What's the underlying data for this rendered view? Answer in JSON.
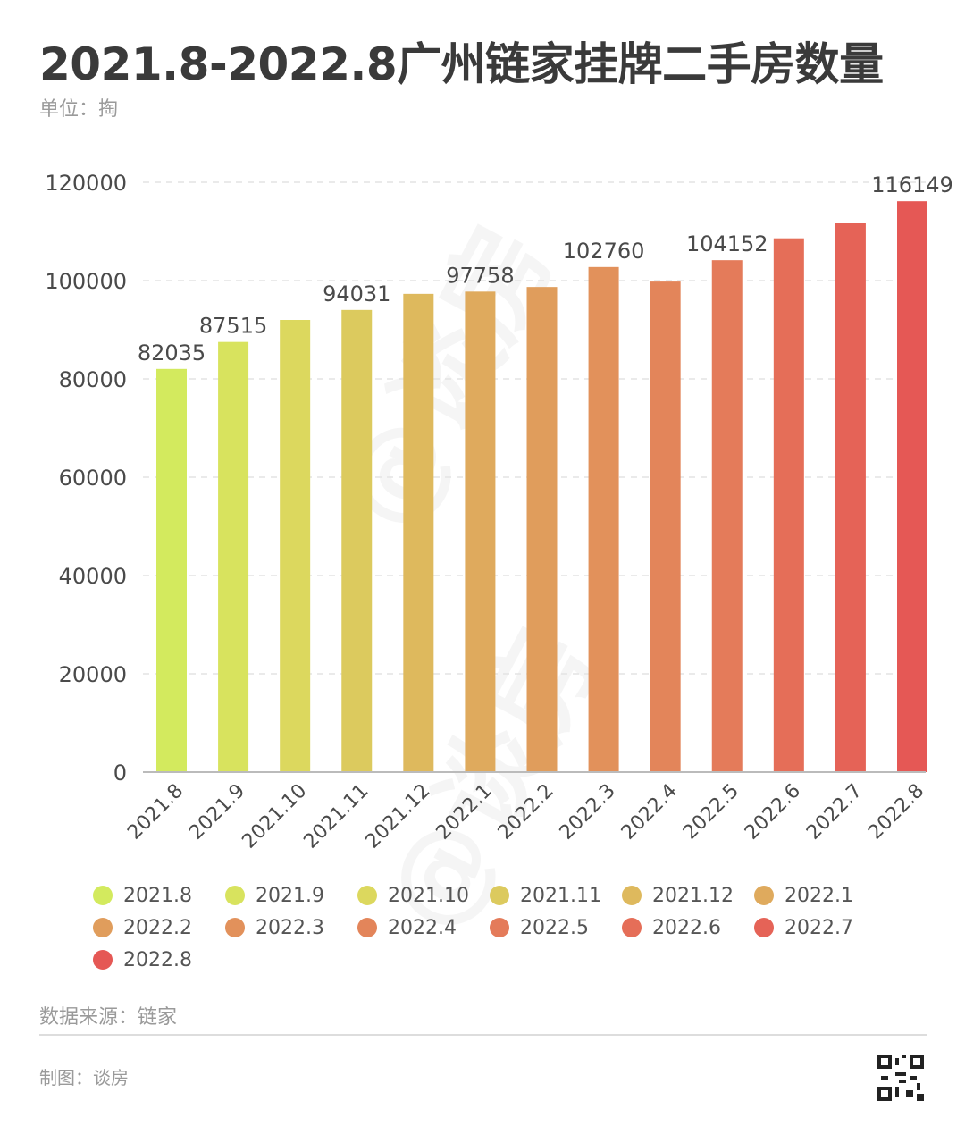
{
  "header": {
    "title": "2021.8-2022.8广州链家挂牌二手房数量",
    "unit": "单位：掏"
  },
  "footer": {
    "source": "数据来源：链家",
    "maker": "制图：谈房"
  },
  "watermark": "@谈房",
  "chart_data": {
    "type": "bar",
    "categories": [
      "2021.8",
      "2021.9",
      "2021.10",
      "2021.11",
      "2021.12",
      "2022.1",
      "2022.2",
      "2022.3",
      "2022.4",
      "2022.5",
      "2022.6",
      "2022.7",
      "2022.8"
    ],
    "values": [
      82035,
      87515,
      92000,
      94031,
      97300,
      97758,
      98700,
      102760,
      99800,
      104152,
      108600,
      111700,
      116149
    ],
    "labeled_indices": [
      0,
      1,
      3,
      5,
      7,
      9,
      12
    ],
    "colors": [
      "#d3ea5e",
      "#d8e35e",
      "#dcd85e",
      "#dcca5e",
      "#deb95d",
      "#dfaa5d",
      "#e09d5c",
      "#e2915b",
      "#e3855a",
      "#e47b5a",
      "#e56e58",
      "#e56357",
      "#e55855"
    ],
    "yticks": [
      0,
      20000,
      40000,
      60000,
      80000,
      100000,
      120000
    ],
    "ylim": [
      0,
      120000
    ],
    "grid": true,
    "legend_position": "bottom",
    "title": "2021.8-2022.8广州链家挂牌二手房数量"
  }
}
